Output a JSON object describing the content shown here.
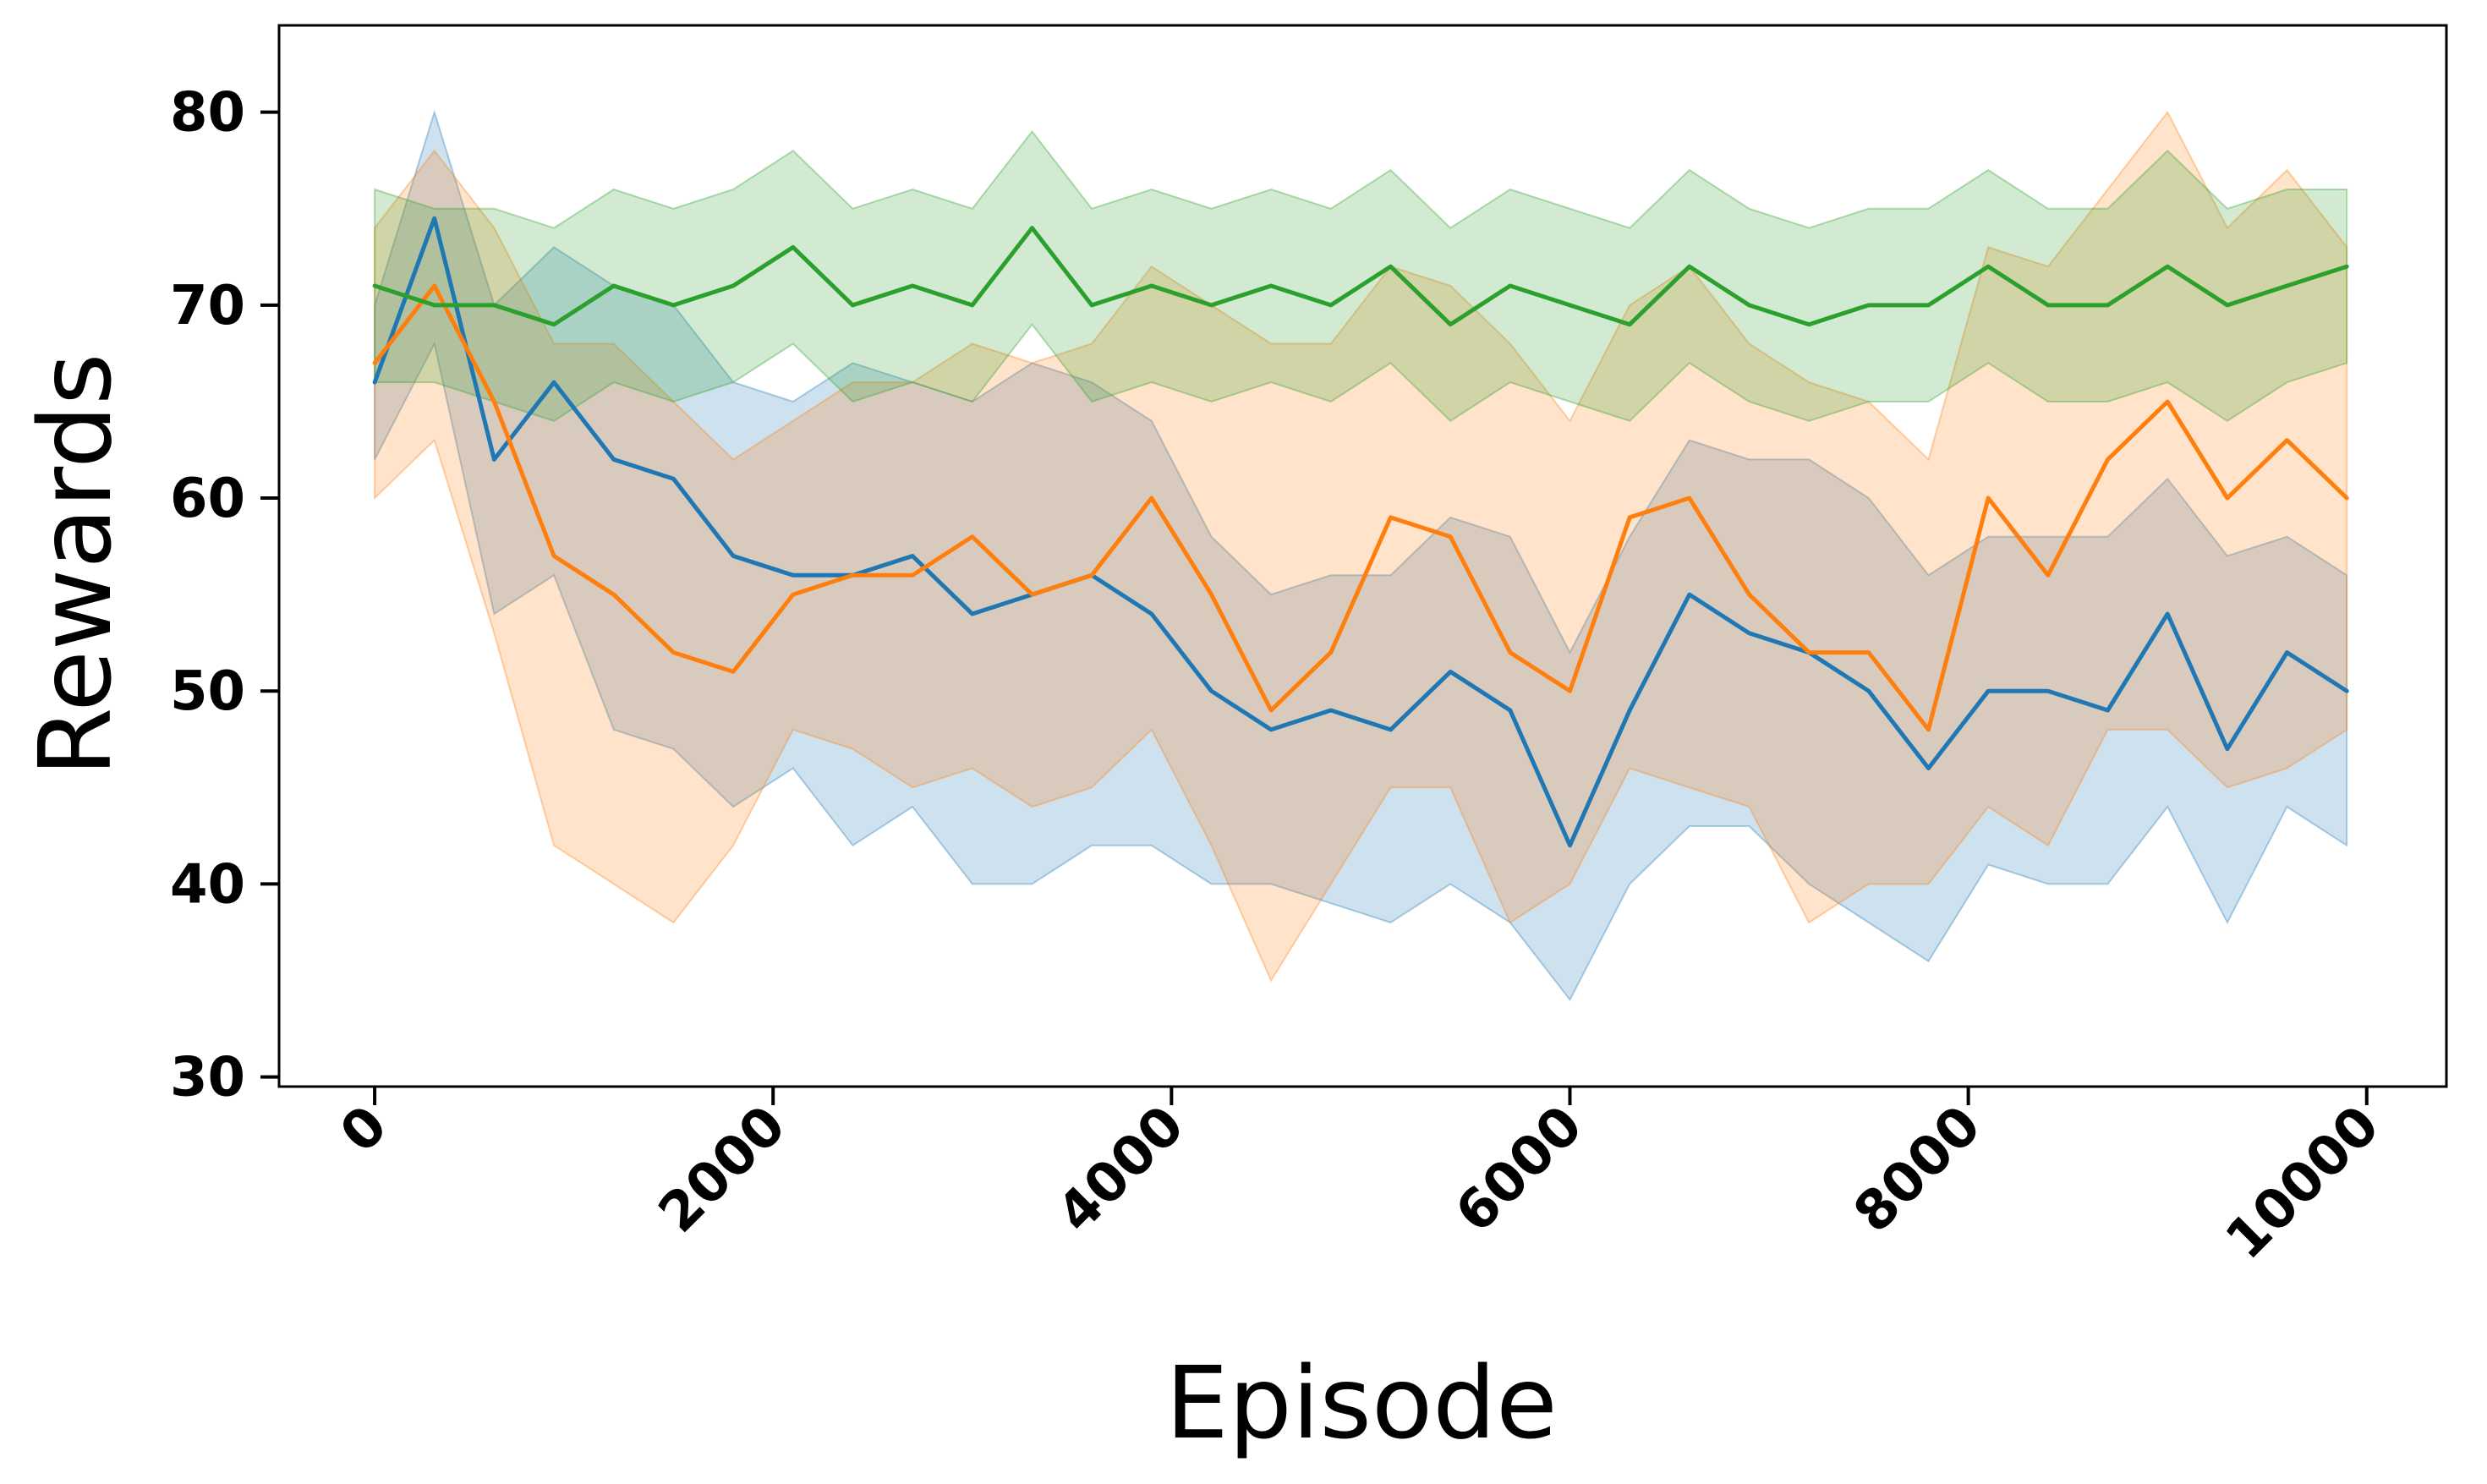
{
  "chart_data": {
    "type": "line",
    "title": "",
    "xlabel": "Episode",
    "ylabel": "Rewards",
    "xlim": [
      -480,
      10400
    ],
    "ylim": [
      29.5,
      84.5
    ],
    "x_ticks": [
      0,
      2000,
      4000,
      6000,
      8000,
      10000
    ],
    "x_tick_labels": [
      "0",
      "2000",
      "4000",
      "6000",
      "8000",
      "10000"
    ],
    "y_ticks": [
      30,
      40,
      50,
      60,
      70,
      80
    ],
    "y_tick_labels": [
      "30",
      "40",
      "50",
      "60",
      "70",
      "80"
    ],
    "grid": false,
    "legend": "none",
    "shaded_band": "band_low / band_high around each line",
    "x": [
      0,
      300,
      600,
      900,
      1200,
      1500,
      1800,
      2100,
      2400,
      2700,
      3000,
      3300,
      3600,
      3900,
      4200,
      4500,
      4800,
      5100,
      5400,
      5700,
      6000,
      6300,
      6600,
      6900,
      7200,
      7500,
      7800,
      8100,
      8400,
      8700,
      9000,
      9300,
      9600,
      9900
    ],
    "series": [
      {
        "color": "#1f77b4",
        "values": [
          66,
          74.5,
          62,
          66,
          62,
          61,
          57,
          56,
          56,
          57,
          54,
          55,
          56,
          54,
          50,
          48,
          49,
          48,
          51,
          49,
          42,
          49,
          55,
          53,
          52,
          50,
          46,
          50,
          50,
          49,
          54,
          47,
          52,
          50
        ],
        "band_low": [
          62,
          68,
          54,
          56,
          48,
          47,
          44,
          46,
          42,
          44,
          40,
          40,
          42,
          42,
          40,
          40,
          39,
          38,
          40,
          38,
          34,
          40,
          43,
          43,
          40,
          38,
          36,
          41,
          40,
          40,
          44,
          38,
          44,
          42
        ],
        "band_high": [
          70,
          80,
          70,
          73,
          71,
          70,
          66,
          65,
          67,
          66,
          65,
          67,
          66,
          64,
          58,
          55,
          56,
          56,
          59,
          58,
          52,
          58,
          63,
          62,
          62,
          60,
          56,
          58,
          58,
          58,
          61,
          57,
          58,
          56
        ]
      },
      {
        "color": "#ff7f0e",
        "values": [
          67,
          71,
          65,
          57,
          55,
          52,
          51,
          55,
          56,
          56,
          58,
          55,
          56,
          60,
          55,
          49,
          52,
          59,
          58,
          52,
          50,
          59,
          60,
          55,
          52,
          52,
          48,
          60,
          56,
          62,
          65,
          60,
          63,
          60
        ],
        "band_low": [
          60,
          63,
          53,
          42,
          40,
          38,
          42,
          48,
          47,
          45,
          46,
          44,
          45,
          48,
          42,
          35,
          40,
          45,
          45,
          38,
          40,
          46,
          45,
          44,
          38,
          40,
          40,
          44,
          42,
          48,
          48,
          45,
          46,
          48
        ],
        "band_high": [
          74,
          78,
          74,
          68,
          68,
          65,
          62,
          64,
          66,
          66,
          68,
          67,
          68,
          72,
          70,
          68,
          68,
          72,
          71,
          68,
          64,
          70,
          72,
          68,
          66,
          65,
          62,
          73,
          72,
          76,
          80,
          74,
          77,
          73
        ]
      },
      {
        "color": "#2ca02c",
        "values": [
          71,
          70,
          70,
          69,
          71,
          70,
          71,
          73,
          70,
          71,
          70,
          74,
          70,
          71,
          70,
          71,
          70,
          72,
          69,
          71,
          70,
          69,
          72,
          70,
          69,
          70,
          70,
          72,
          70,
          70,
          72,
          70,
          71,
          72
        ],
        "band_low": [
          66,
          66,
          65,
          64,
          66,
          65,
          66,
          68,
          65,
          66,
          65,
          69,
          65,
          66,
          65,
          66,
          65,
          67,
          64,
          66,
          65,
          64,
          67,
          65,
          64,
          65,
          65,
          67,
          65,
          65,
          66,
          64,
          66,
          67
        ],
        "band_high": [
          76,
          75,
          75,
          74,
          76,
          75,
          76,
          78,
          75,
          76,
          75,
          79,
          75,
          76,
          75,
          76,
          75,
          77,
          74,
          76,
          75,
          74,
          77,
          75,
          74,
          75,
          75,
          77,
          75,
          75,
          78,
          75,
          76,
          76
        ]
      }
    ]
  }
}
